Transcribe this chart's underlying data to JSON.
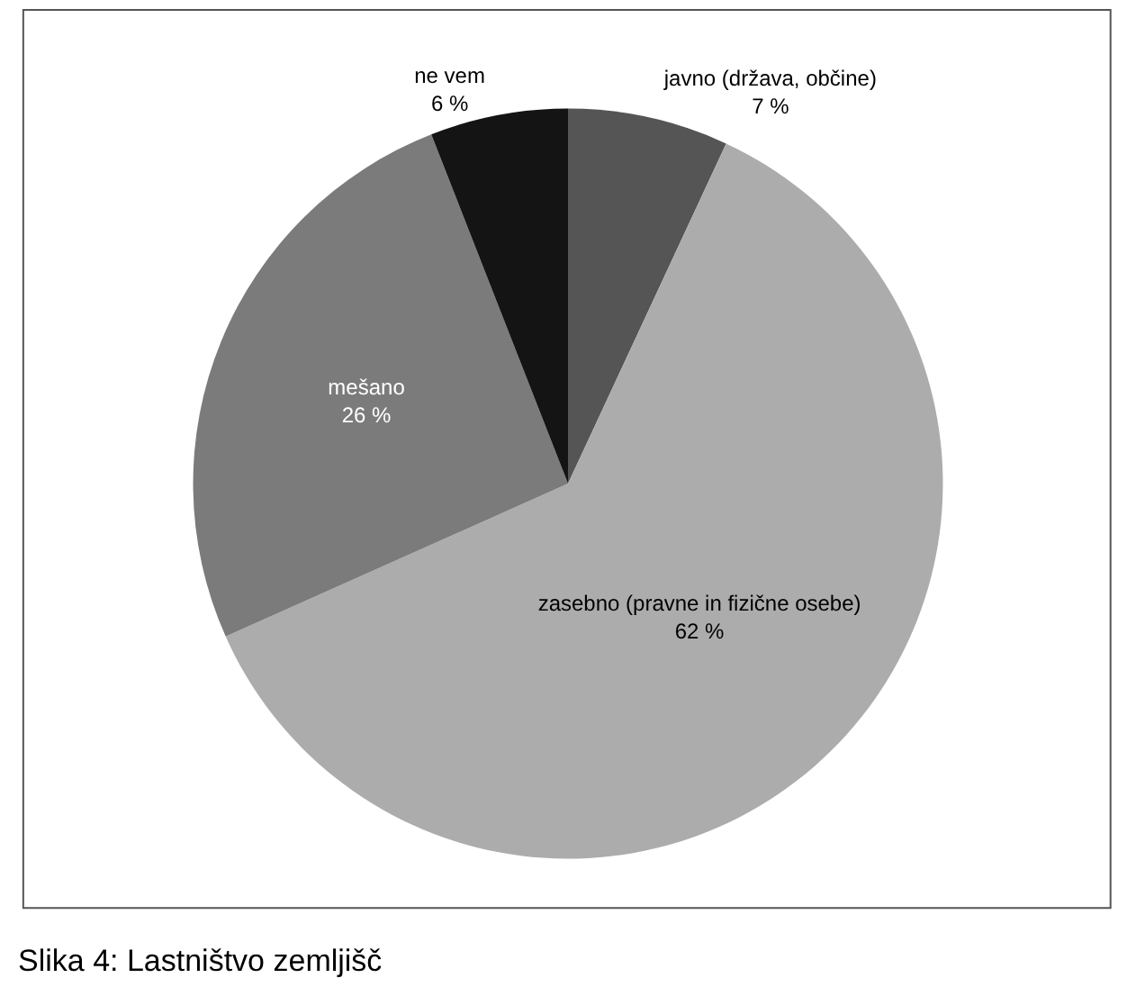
{
  "chart_data": {
    "type": "pie",
    "categories": [
      "javno (država, občine)",
      "zasebno (pravne in fizične osebe)",
      "mešano",
      "ne vem"
    ],
    "values": [
      7,
      62,
      26,
      6
    ],
    "value_labels": [
      "7 %",
      "62 %",
      "26 %",
      "6 %"
    ],
    "colors": [
      "#555555",
      "#acacac",
      "#7b7b7b",
      "#141414"
    ],
    "annotations": [
      "Slika 4: Lastništvo zemljišč"
    ],
    "legend": false
  }
}
